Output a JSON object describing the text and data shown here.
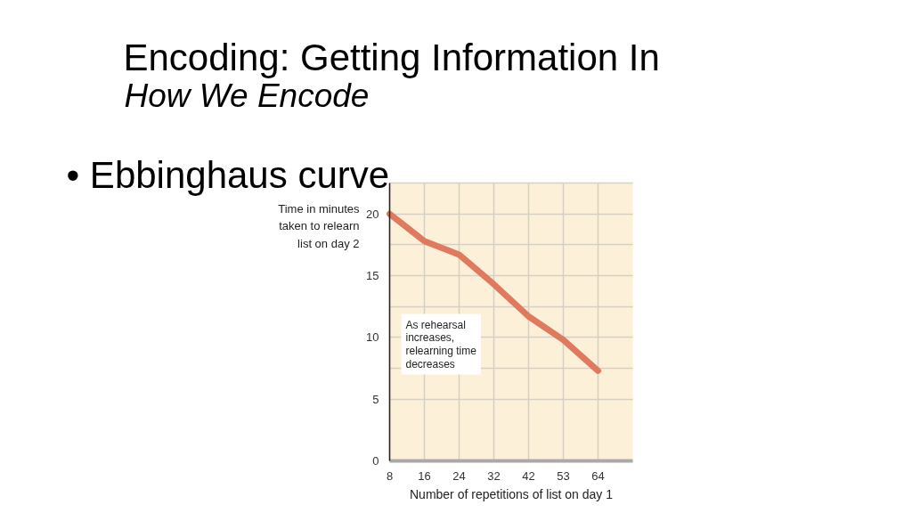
{
  "chart_data": {
    "type": "line",
    "title": "Encoding: Getting Information In",
    "subtitle": "How We Encode",
    "annotations": [
      "• Ebbinghaus curve",
      "As rehearsal\nincreases,\nrelearning time\ndecreases"
    ],
    "xlabel": "Number of repetitions of list on day 1",
    "ylabel": "Time in minutes\ntaken to relearn\nlist on day 2",
    "categories": [
      "8",
      "16",
      "24",
      "32",
      "42",
      "53",
      "64"
    ],
    "values": [
      20,
      17.8,
      16.7,
      14.3,
      11.7,
      9.8,
      7.3
    ],
    "color": "#e07a5f",
    "line_style": "solid",
    "ylim": [
      0,
      22.5
    ],
    "yticks": [
      0,
      5,
      {
        "value": 7.5,
        "label": null
      },
      10,
      {
        "value": 12.5,
        "label": null
      },
      15,
      {
        "value": 17.5,
        "label": null
      },
      20,
      {
        "value": 22.5,
        "label": null
      }
    ],
    "grid": true
  }
}
